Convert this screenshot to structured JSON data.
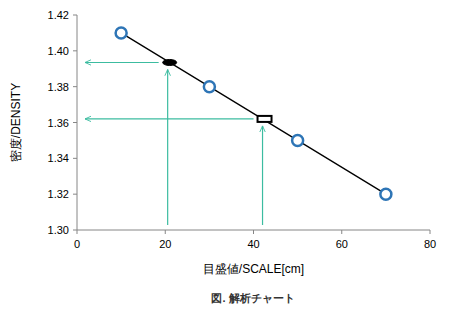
{
  "chart_data": {
    "type": "scatter",
    "title": "図. 解析チャート",
    "x_label": "目盛値/SCALE[cm]",
    "y_label": "密度/DENSITY",
    "xlim": [
      0,
      80
    ],
    "xticks": [
      0,
      20,
      40,
      60,
      80
    ],
    "ylim": [
      1.3,
      1.42
    ],
    "yticks": [
      {
        "value": 1.3,
        "label": "1.30"
      },
      {
        "value": 1.32,
        "label": "1.32"
      },
      {
        "value": 1.34,
        "label": "1.34"
      },
      {
        "value": 1.36,
        "label": "1.36"
      },
      {
        "value": 1.38,
        "label": "1.38"
      },
      {
        "value": 1.4,
        "label": "1.40"
      },
      {
        "value": 1.42,
        "label": "1.42"
      }
    ],
    "grid": false,
    "series": [
      {
        "x": [
          10,
          30,
          50,
          70
        ],
        "values": [
          1.41,
          1.38,
          1.35,
          1.32
        ],
        "color": "#2e75b6",
        "marker": "circle",
        "line_style": "solid"
      },
      {
        "x": [
          21
        ],
        "values": [
          1.3935
        ],
        "color": "#000000",
        "marker": "ellipse",
        "line_style": "none"
      },
      {
        "x": [
          42.5
        ],
        "values": [
          1.362
        ],
        "color": "#000000",
        "marker": "square",
        "line_style": "none"
      }
    ]
  }
}
